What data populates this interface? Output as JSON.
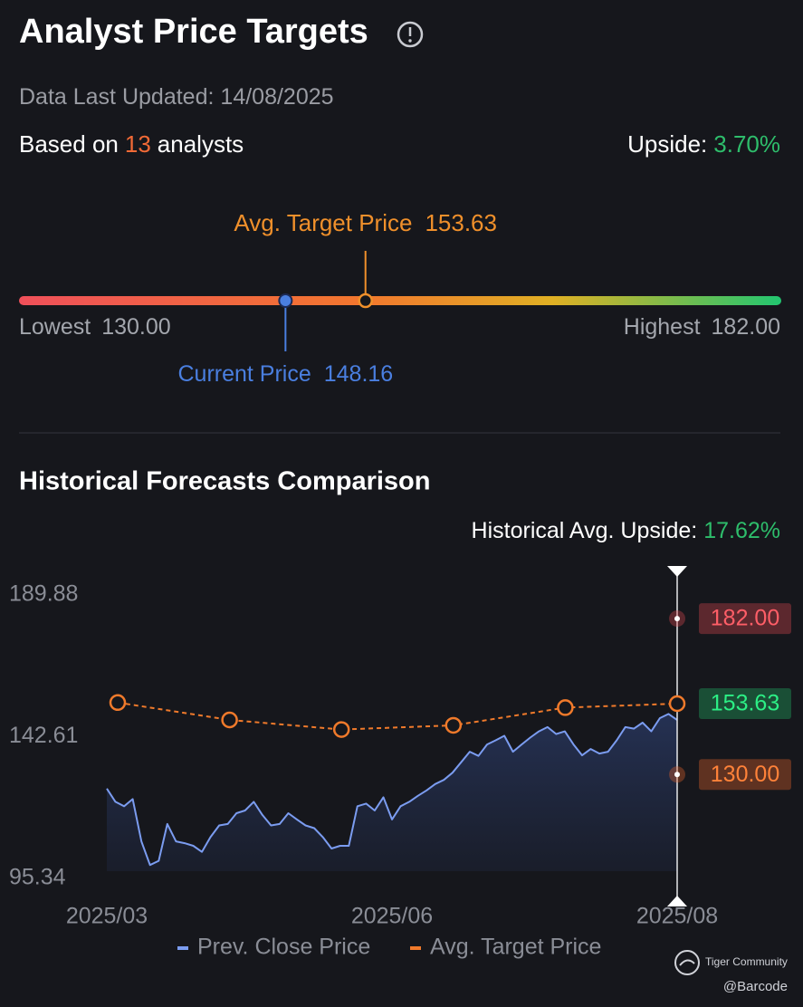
{
  "header": {
    "title": "Analyst Price Targets",
    "updated_label": "Data Last Updated:",
    "updated": "14/08/2025"
  },
  "summary": {
    "based_prefix": "Based on",
    "analysts": 13,
    "based_suffix": "analysts",
    "upside_label": "Upside:",
    "upside": "3.70%"
  },
  "range": {
    "avg_label": "Avg. Target Price",
    "avg": 153.63,
    "current_label": "Current Price",
    "current": 148.16,
    "lowest_label": "Lowest",
    "lowest": {
      "value": 130,
      "label": "130.00"
    },
    "highest_label": "Highest",
    "highest": {
      "value": 182,
      "label": "182.00"
    }
  },
  "chart_data": {
    "type": "line",
    "title": "Historical Forecasts Comparison",
    "subtitle_label": "Historical Avg. Upside:",
    "subtitle_value": "17.62%",
    "x_labels": [
      "2025/03",
      "2025/06",
      "2025/08"
    ],
    "ylim": [
      95.34,
      189.88
    ],
    "yticks": [
      95.34,
      142.61,
      189.88
    ],
    "series": [
      {
        "name": "Prev. Close Price",
        "color": "#7b9cf0",
        "values": [
          125.3,
          120.9,
          119.4,
          121.8,
          107.7,
          99.8,
          101.2,
          113.5,
          107.7,
          107.1,
          106.2,
          104.2,
          109.1,
          113.0,
          113.5,
          117.1,
          118.0,
          120.9,
          116.5,
          113.0,
          113.5,
          117.1,
          115.0,
          113.0,
          112.1,
          109.1,
          105.3,
          106.2,
          106.2,
          119.4,
          120.3,
          118.0,
          122.4,
          115.0,
          119.4,
          120.9,
          122.9,
          124.7,
          126.8,
          128.2,
          130.6,
          134.1,
          137.6,
          136.2,
          140.0,
          141.4,
          142.9,
          137.6,
          140.0,
          142.3,
          144.4,
          145.8,
          143.5,
          144.4,
          140.0,
          136.4,
          138.5,
          137.0,
          137.6,
          141.4,
          145.8,
          145.3,
          147.3,
          144.4,
          148.8,
          150.2,
          148.16
        ]
      },
      {
        "name": "Avg. Target Price",
        "color": "#f07a2b",
        "values": [
          154.0,
          148.2,
          145.0,
          146.4,
          152.3,
          153.63
        ]
      }
    ],
    "end_labels": [
      {
        "value": 182,
        "label": "182.00"
      },
      {
        "value": 153.63,
        "label": "153.63"
      },
      {
        "value": 130,
        "label": "130.00"
      }
    ],
    "end_label_colors": [
      "#e0484f",
      "#22b866",
      "#e8642c"
    ]
  },
  "watermark": {
    "brand": "Tiger Community",
    "handle": "@Barcode"
  }
}
